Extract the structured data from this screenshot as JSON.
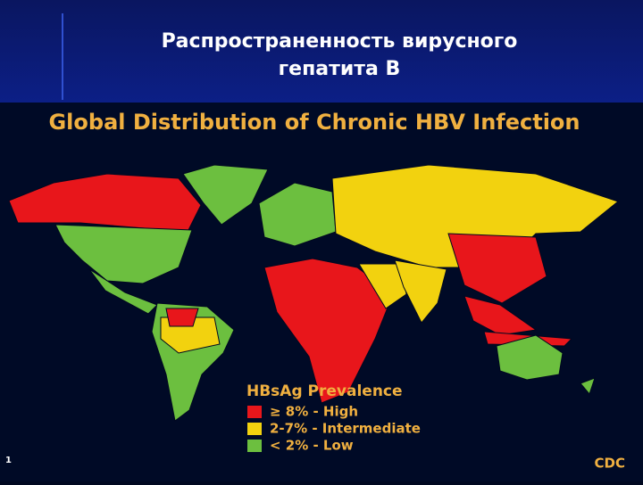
{
  "slide": {
    "title_lines": [
      "Распространенность вирусного",
      "гепатита В"
    ],
    "number": "1"
  },
  "map": {
    "title": "Global Distribution of Chronic HBV Infection",
    "legend": {
      "title": "HBsAg Prevalence",
      "items": [
        {
          "label": "≥ 8% - High",
          "color": "#e8161b"
        },
        {
          "label": "2-7% - Intermediate",
          "color": "#f2d20f"
        },
        {
          "label": "< 2% - Low",
          "color": "#6cbf3f"
        }
      ]
    },
    "source": "CDC"
  }
}
